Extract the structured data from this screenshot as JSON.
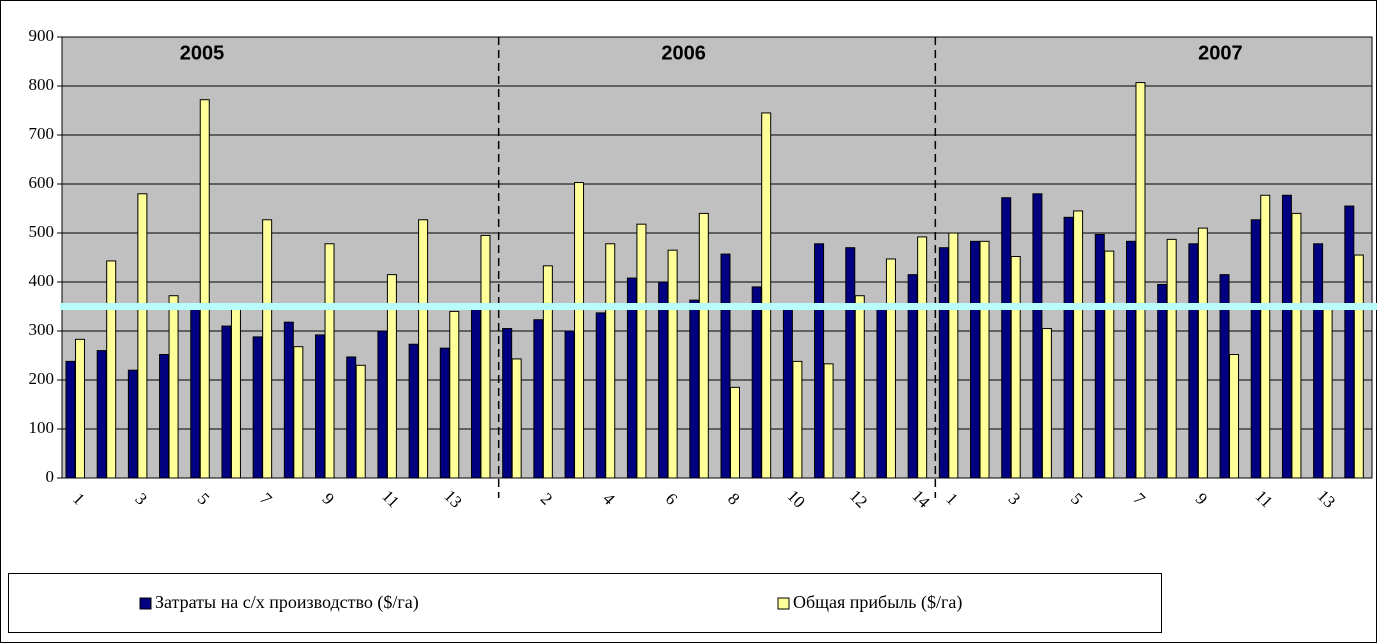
{
  "chart_data": {
    "type": "bar",
    "sections": [
      "2005",
      "2006",
      "2007"
    ],
    "categories": [
      "1",
      null,
      "3",
      null,
      "5",
      null,
      "7",
      null,
      "9",
      null,
      "11",
      null,
      "13",
      null,
      null,
      "2",
      null,
      "4",
      null,
      "6",
      null,
      "8",
      null,
      "10",
      null,
      "12",
      null,
      "14",
      "1",
      null,
      "3",
      null,
      "5",
      null,
      "7",
      null,
      "9",
      null,
      "11",
      null,
      "13",
      null
    ],
    "series": [
      {
        "name": "Затраты на с/х производство ($/га)",
        "color": "#000080",
        "values": [
          238,
          260,
          220,
          252,
          345,
          310,
          288,
          318,
          292,
          247,
          300,
          273,
          265,
          345,
          305,
          323,
          300,
          337,
          408,
          400,
          363,
          457,
          390,
          345,
          478,
          470,
          345,
          415,
          470,
          483,
          572,
          580,
          532,
          497,
          483,
          395,
          478,
          415,
          527,
          577,
          478,
          555
        ]
      },
      {
        "name": "Общая прибыль ($/га)",
        "color": "#ffff99",
        "values": [
          283,
          443,
          580,
          372,
          772,
          345,
          527,
          268,
          478,
          230,
          415,
          527,
          340,
          495,
          243,
          433,
          603,
          478,
          518,
          465,
          540,
          185,
          745,
          238,
          233,
          372,
          447,
          492,
          500,
          483,
          452,
          305,
          545,
          463,
          807,
          487,
          510,
          252,
          577,
          540,
          350,
          455
        ]
      }
    ],
    "reference_line": 350,
    "reference_color": "#b8fcfc",
    "ylim": [
      0,
      900
    ],
    "yticks": [
      0,
      100,
      200,
      300,
      400,
      500,
      600,
      700,
      800,
      900
    ],
    "grid": true,
    "plot_background": "#c0c0c0"
  }
}
